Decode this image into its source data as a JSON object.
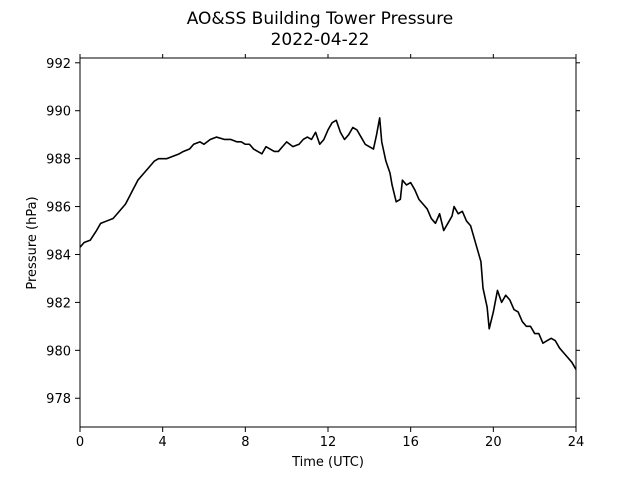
{
  "chart_data": {
    "type": "line",
    "title": "AO&SS Building Tower Pressure",
    "subtitle": "2022-04-22",
    "xlabel": "Time (UTC)",
    "ylabel": "Pressure (hPa)",
    "xlim": [
      0,
      24
    ],
    "ylim": [
      976.8,
      992.2
    ],
    "xticks": [
      0,
      4,
      8,
      12,
      16,
      20,
      24
    ],
    "yticks": [
      978,
      980,
      982,
      984,
      986,
      988,
      990,
      992
    ],
    "grid": false,
    "line_color": "#000000",
    "series": [
      {
        "x": [
          0,
          0.2,
          0.5,
          0.8,
          1.0,
          1.3,
          1.6,
          1.9,
          2.2,
          2.5,
          2.8,
          3.0,
          3.3,
          3.6,
          3.8,
          4.0,
          4.2,
          4.5,
          4.8,
          5.0,
          5.3,
          5.5,
          5.8,
          6.0,
          6.3,
          6.6,
          7.0,
          7.3,
          7.6,
          7.8,
          8.0,
          8.2,
          8.4,
          8.6,
          8.8,
          9.0,
          9.2,
          9.4,
          9.6,
          9.8,
          10.0,
          10.3,
          10.6,
          10.8,
          11.0,
          11.2,
          11.4,
          11.6,
          11.8,
          12.0,
          12.2,
          12.4,
          12.6,
          12.8,
          13.0,
          13.2,
          13.4,
          13.6,
          13.8,
          14.0,
          14.2,
          14.35,
          14.5,
          14.6,
          14.8,
          15.0,
          15.1,
          15.3,
          15.5,
          15.6,
          15.8,
          16.0,
          16.2,
          16.4,
          16.6,
          16.8,
          17.0,
          17.2,
          17.4,
          17.6,
          17.8,
          18.0,
          18.1,
          18.3,
          18.5,
          18.7,
          18.9,
          19.0,
          19.2,
          19.4,
          19.5,
          19.7,
          19.8,
          20.0,
          20.2,
          20.4,
          20.6,
          20.8,
          21.0,
          21.2,
          21.4,
          21.6,
          21.8,
          22.0,
          22.2,
          22.4,
          22.6,
          22.8,
          23.0,
          23.2,
          23.4,
          23.6,
          23.8,
          24.0
        ],
        "y": [
          984.3,
          984.5,
          984.6,
          985.0,
          985.3,
          985.4,
          985.5,
          985.8,
          986.1,
          986.6,
          987.1,
          987.3,
          987.6,
          987.9,
          988.0,
          988.0,
          988.0,
          988.1,
          988.2,
          988.3,
          988.4,
          988.6,
          988.7,
          988.6,
          988.8,
          988.9,
          988.8,
          988.8,
          988.7,
          988.7,
          988.6,
          988.6,
          988.4,
          988.3,
          988.2,
          988.5,
          988.4,
          988.3,
          988.3,
          988.5,
          988.7,
          988.5,
          988.6,
          988.8,
          988.9,
          988.8,
          989.1,
          988.6,
          988.8,
          989.2,
          989.5,
          989.6,
          989.1,
          988.8,
          989.0,
          989.3,
          989.2,
          988.9,
          988.6,
          988.5,
          988.4,
          989.0,
          989.7,
          988.7,
          987.9,
          987.4,
          986.9,
          986.2,
          986.3,
          987.1,
          986.9,
          987.0,
          986.7,
          986.3,
          986.1,
          985.9,
          985.5,
          985.3,
          985.7,
          985.0,
          985.3,
          985.6,
          986.0,
          985.7,
          985.8,
          985.4,
          985.2,
          984.9,
          984.3,
          983.7,
          982.6,
          981.8,
          980.9,
          981.6,
          982.5,
          982.0,
          982.3,
          982.1,
          981.7,
          981.6,
          981.2,
          981.0,
          981.0,
          980.7,
          980.7,
          980.3,
          980.4,
          980.5,
          980.4,
          980.1,
          979.9,
          979.7,
          979.5,
          979.2
        ]
      }
    ]
  }
}
